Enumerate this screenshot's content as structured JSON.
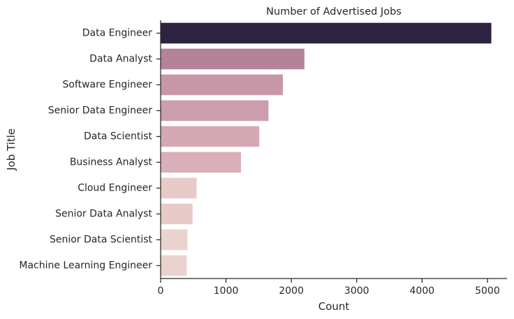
{
  "chart_data": {
    "type": "bar",
    "orientation": "horizontal",
    "title": "Number of Advertised Jobs",
    "xlabel": "Count",
    "ylabel": "Job Title",
    "xlim": [
      0,
      5300
    ],
    "xticks": [
      0,
      1000,
      2000,
      3000,
      4000,
      5000
    ],
    "grid": false,
    "categories": [
      "Data Engineer",
      "Data Analyst",
      "Software Engineer",
      "Senior Data Engineer",
      "Data Scientist",
      "Business Analyst",
      "Cloud Engineer",
      "Senior Data Analyst",
      "Senior Data Scientist",
      "Machine Learning Engineer"
    ],
    "values": [
      5060,
      2200,
      1870,
      1650,
      1510,
      1230,
      550,
      490,
      410,
      400
    ],
    "colors": [
      "#2e2340",
      "#b58399",
      "#c796a7",
      "#cc9dac",
      "#d4a9b4",
      "#daafb8",
      "#e8cbc8",
      "#e8cbc8",
      "#ead2cf",
      "#ead2cf"
    ]
  }
}
